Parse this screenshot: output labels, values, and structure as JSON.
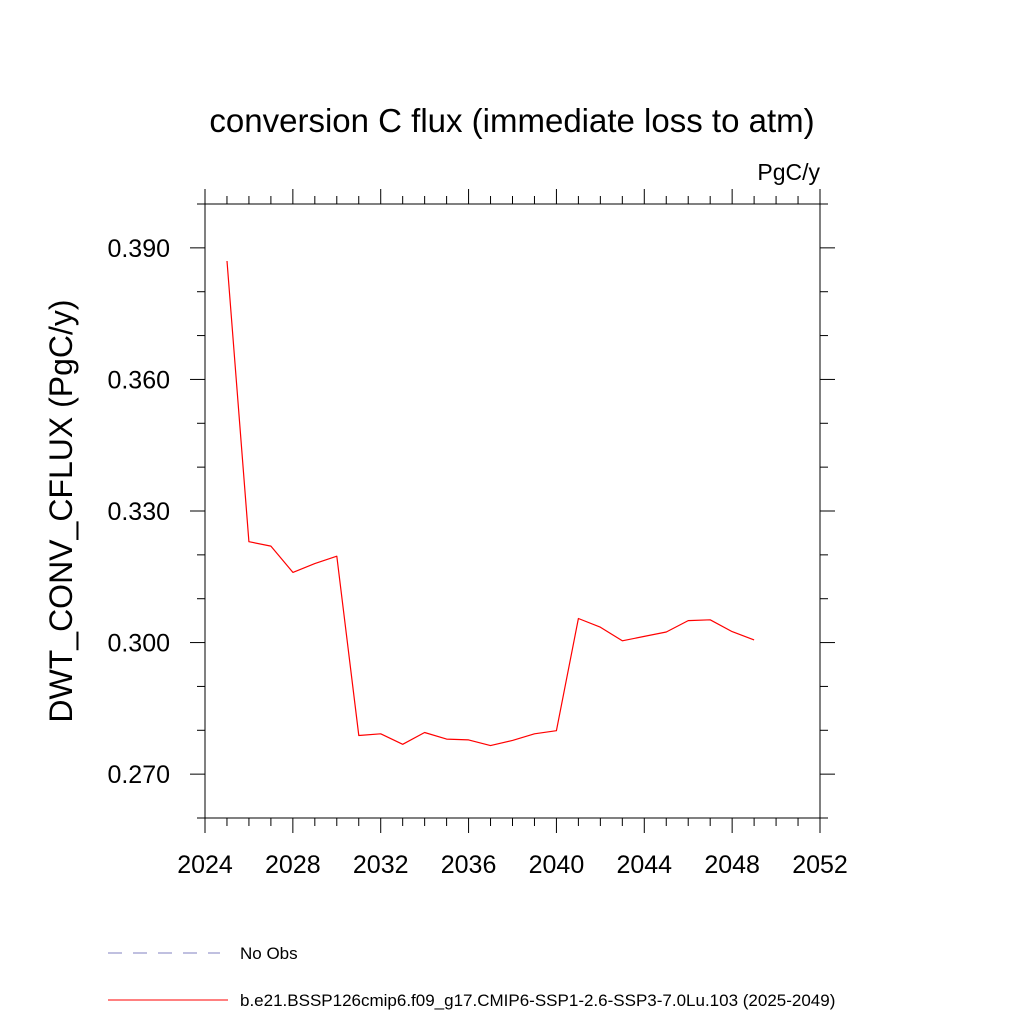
{
  "chart_data": {
    "type": "line",
    "title": "conversion C flux (immediate loss to atm)",
    "units_label": "PgC/y",
    "ylabel": "DWT_CONV_CFLUX  (PgC/y)",
    "xlabel": "",
    "xlim": [
      2024,
      2052
    ],
    "ylim": [
      0.26,
      0.4
    ],
    "x_ticks": [
      2024,
      2028,
      2032,
      2036,
      2040,
      2044,
      2048,
      2052
    ],
    "x_tick_labels": [
      "2024",
      "2028",
      "2032",
      "2036",
      "2040",
      "2044",
      "2048",
      "2052"
    ],
    "y_ticks": [
      0.27,
      0.3,
      0.33,
      0.36,
      0.39
    ],
    "y_tick_labels": [
      "0.270",
      "0.300",
      "0.330",
      "0.360",
      "0.390"
    ],
    "x_minor_step": 1,
    "y_minor_step": 0.01,
    "grid": false,
    "legend_position": "bottom-left",
    "series": [
      {
        "name": "b.e21.BSSP126cmip6.f09_g17.CMIP6-SSP1-2.6-SSP3-7.0Lu.103 (2025-2049)",
        "color": "#ff0000",
        "style": "solid",
        "x": [
          2025,
          2026,
          2027,
          2028,
          2029,
          2030,
          2031,
          2032,
          2033,
          2034,
          2035,
          2036,
          2037,
          2038,
          2039,
          2040,
          2041,
          2042,
          2043,
          2044,
          2045,
          2046,
          2047,
          2048,
          2049
        ],
        "y": [
          0.387,
          0.323,
          0.322,
          0.316,
          0.318,
          0.3197,
          0.2788,
          0.2792,
          0.2768,
          0.2795,
          0.278,
          0.2778,
          0.2765,
          0.2777,
          0.2792,
          0.2799,
          0.3055,
          0.3035,
          0.3004,
          0.3014,
          0.3024,
          0.305,
          0.3052,
          0.3025,
          0.3006
        ]
      }
    ],
    "legend": [
      {
        "label": "No Obs",
        "color": "#8080c0",
        "style": "dashed"
      },
      {
        "label": "b.e21.BSSP126cmip6.f09_g17.CMIP6-SSP1-2.6-SSP3-7.0Lu.103 (2025-2049)",
        "color": "#ff0000",
        "style": "solid"
      }
    ]
  }
}
